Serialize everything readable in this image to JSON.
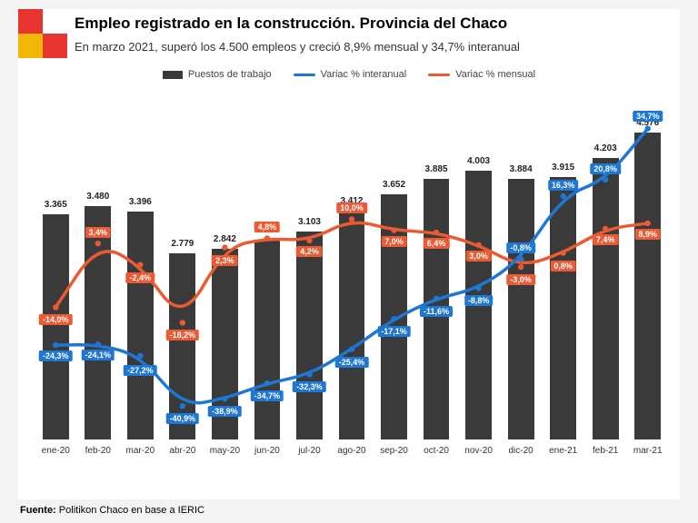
{
  "logo": {
    "colors": {
      "tl": "#e8342f",
      "br": "#e8342f",
      "bl": "#f2b705"
    }
  },
  "title": "Empleo registrado en la construcción. Provincia del Chaco",
  "subtitle": "En marzo 2021, superó los 4.500 empleos y creció 8,9% mensual y 34,7% interanual",
  "legend": {
    "bars": {
      "label": "Puestos de trabajo",
      "color": "#3a3a3a"
    },
    "lineYoY": {
      "label": "Variac % interanual",
      "color": "#1f77d4"
    },
    "lineMoM": {
      "label": "Variac % mensual",
      "color": "#ea5a33"
    }
  },
  "chart": {
    "type": "bar+line",
    "categories": [
      "ene-20",
      "feb-20",
      "mar-20",
      "abr-20",
      "may-20",
      "jun-20",
      "jul-20",
      "ago-20",
      "sep-20",
      "oct-20",
      "nov-20",
      "dic-20",
      "ene-21",
      "feb-21",
      "mar-21"
    ],
    "bars": {
      "values": [
        3365,
        3480,
        3396,
        2779,
        2842,
        2977,
        3103,
        3412,
        3652,
        3885,
        4003,
        3884,
        3915,
        4203,
        4576
      ],
      "labels": [
        "3.365",
        "3.480",
        "3.396",
        "2.779",
        "2.842",
        "2.977",
        "3.103",
        "3.412",
        "3.652",
        "3.885",
        "4.003",
        "3.884",
        "3.915",
        "4.203",
        "4.576"
      ],
      "color": "#3a3a3a",
      "bar_width_frac": 0.62,
      "ylim": [
        0,
        5200
      ]
    },
    "line_yoy": {
      "values": [
        -24.3,
        -24.1,
        -27.2,
        -40.9,
        -38.9,
        -34.7,
        -32.3,
        -25.4,
        -17.1,
        -11.6,
        -8.8,
        -0.8,
        16.3,
        20.8,
        34.7
      ],
      "labels": [
        "-24,3%",
        "-24,1%",
        "-27,2%",
        "-40,9%",
        "-38,9%",
        "-34,7%",
        "-32,3%",
        "-25,4%",
        "-17,1%",
        "-11,6%",
        "-8,8%",
        "-0,8%",
        "16,3%",
        "20,8%",
        "34,7%"
      ],
      "label_offsets_y": [
        12,
        12,
        16,
        14,
        14,
        14,
        14,
        14,
        14,
        14,
        14,
        -12,
        -12,
        -12,
        -14
      ],
      "color": "#1f77d4",
      "ylim": [
        -50,
        45
      ],
      "line_width": 3.5
    },
    "line_mom": {
      "values": [
        -14.0,
        3.4,
        -2.4,
        -18.2,
        2.3,
        4.8,
        4.2,
        10.0,
        7.0,
        6.4,
        3.0,
        -3.0,
        0.8,
        7.4,
        8.9
      ],
      "labels": [
        "-14,0%",
        "3,4%",
        "-2,4%",
        "-18,2%",
        "2,3%",
        "4,8%",
        "4,2%",
        "10,0%",
        "7,0%",
        "6,4%",
        "3,0%",
        "-3,0%",
        "0,8%",
        "7,4%",
        "8,9%"
      ],
      "label_offsets_y": [
        14,
        -12,
        14,
        14,
        14,
        -12,
        12,
        -12,
        12,
        12,
        12,
        14,
        14,
        12,
        12
      ],
      "color": "#ea5a33",
      "ylim": [
        -50,
        45
      ],
      "line_width": 3.5
    },
    "background_color": "#ffffff",
    "xaxis_fontsize": 10,
    "barlabel_fontsize": 10,
    "ptlabel_fontsize": 9
  },
  "source": {
    "prefix": "Fuente:",
    "text": "Politikon Chaco en base a IERIC"
  }
}
